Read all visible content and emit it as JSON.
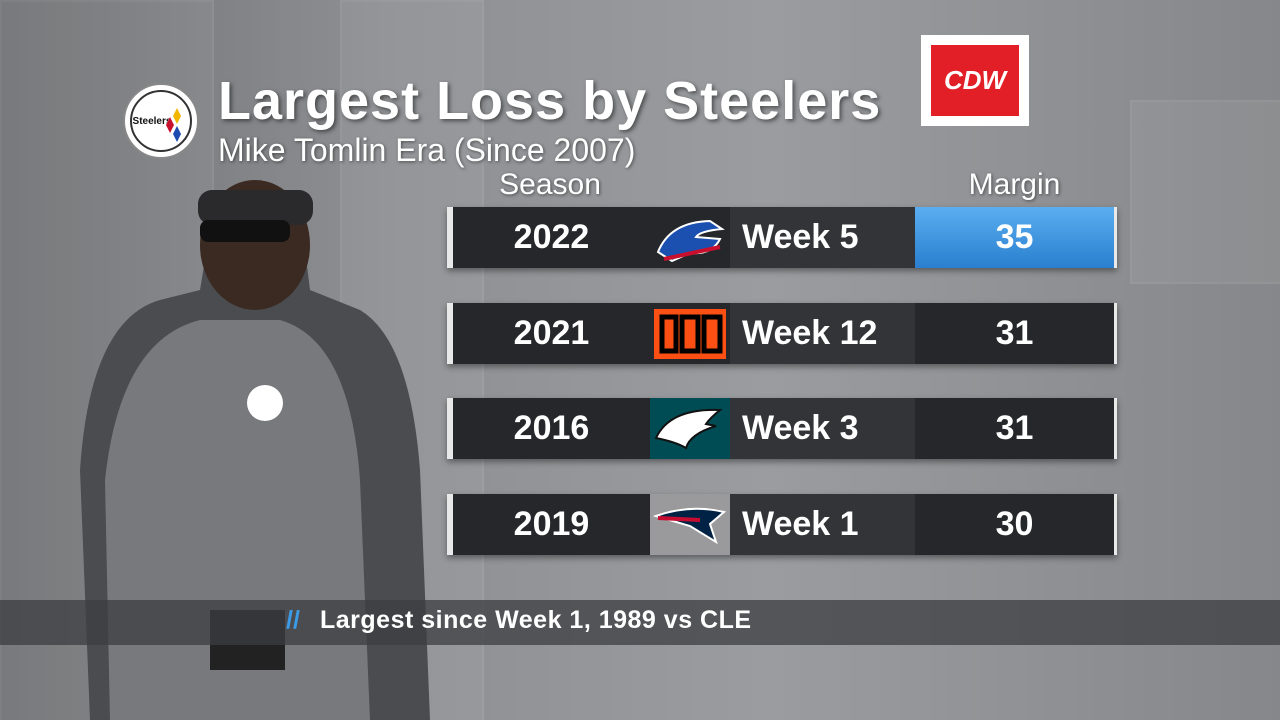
{
  "header": {
    "title": "Largest Loss by Steelers",
    "subtitle": "Mike Tomlin Era (Since 2007)",
    "team_logo_text": "Steelers"
  },
  "sponsor": "CDW",
  "table": {
    "columns": [
      "Season",
      "Margin"
    ],
    "rows": [
      {
        "season": 2022,
        "week": "Week 5",
        "margin": 35
      },
      {
        "season": 2021,
        "week": "Week 12",
        "margin": 31
      },
      {
        "season": 2016,
        "week": "Week 3",
        "margin": 31
      },
      {
        "season": 2019,
        "week": "Week 1",
        "margin": 30
      }
    ]
  },
  "footer": {
    "note": "Largest since Week 1, 1989 vs CLE"
  }
}
